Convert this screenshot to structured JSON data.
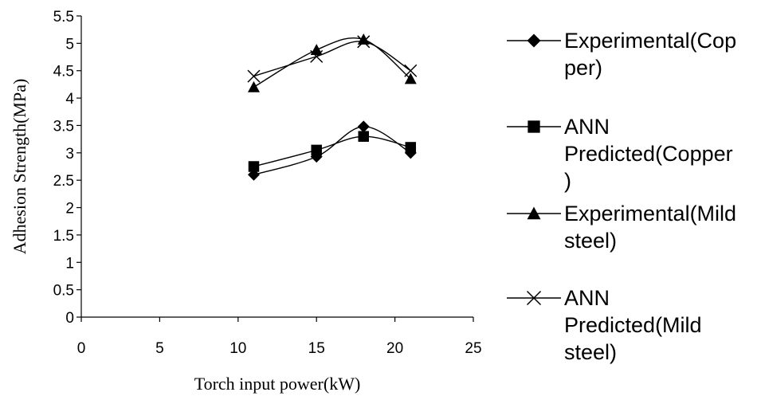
{
  "chart_data": {
    "type": "line",
    "title": "",
    "xlabel": "Torch input power(kW)",
    "ylabel": "Adhesion Strength(MPa)",
    "xlim": [
      0,
      25
    ],
    "ylim": [
      0,
      5.5
    ],
    "xticks": [
      0,
      5,
      10,
      15,
      20,
      25
    ],
    "yticks": [
      0,
      0.5,
      1,
      1.5,
      2,
      2.5,
      3,
      3.5,
      4,
      4.5,
      5,
      5.5
    ],
    "xtick_labels": [
      "0",
      "5",
      "10",
      "15",
      "20",
      "25"
    ],
    "ytick_labels": [
      "0",
      "0.5",
      "1",
      "1.5",
      "2",
      "2.5",
      "3",
      "3.5",
      "4",
      "4.5",
      "5",
      "5.5"
    ],
    "grid": false,
    "smooth_lines": true,
    "legend_position": "right",
    "series": [
      {
        "name": "Experimental(Copper)",
        "legend_lines": [
          "Experimental(Cop",
          "per)"
        ],
        "marker": "diamond",
        "color": "#000000",
        "x": [
          11,
          15,
          18,
          21
        ],
        "y": [
          2.6,
          2.93,
          3.48,
          3.0
        ]
      },
      {
        "name": "ANN Predicted(Copper)",
        "legend_lines": [
          "ANN",
          "Predicted(Copper",
          ")"
        ],
        "marker": "square",
        "color": "#000000",
        "x": [
          11,
          15,
          18,
          21
        ],
        "y": [
          2.75,
          3.05,
          3.3,
          3.1
        ]
      },
      {
        "name": "Experimental(Mild steel)",
        "legend_lines": [
          "Experimental(Mild",
          "steel)"
        ],
        "marker": "triangle",
        "color": "#000000",
        "x": [
          11,
          15,
          18,
          21
        ],
        "y": [
          4.2,
          4.88,
          5.07,
          4.35
        ]
      },
      {
        "name": "ANN Predicted(Mild steel)",
        "legend_lines": [
          "ANN",
          "Predicted(Mild",
          "steel)"
        ],
        "marker": "x",
        "color": "#000000",
        "x": [
          11,
          15,
          18,
          21
        ],
        "y": [
          4.4,
          4.76,
          5.03,
          4.5
        ]
      }
    ]
  }
}
